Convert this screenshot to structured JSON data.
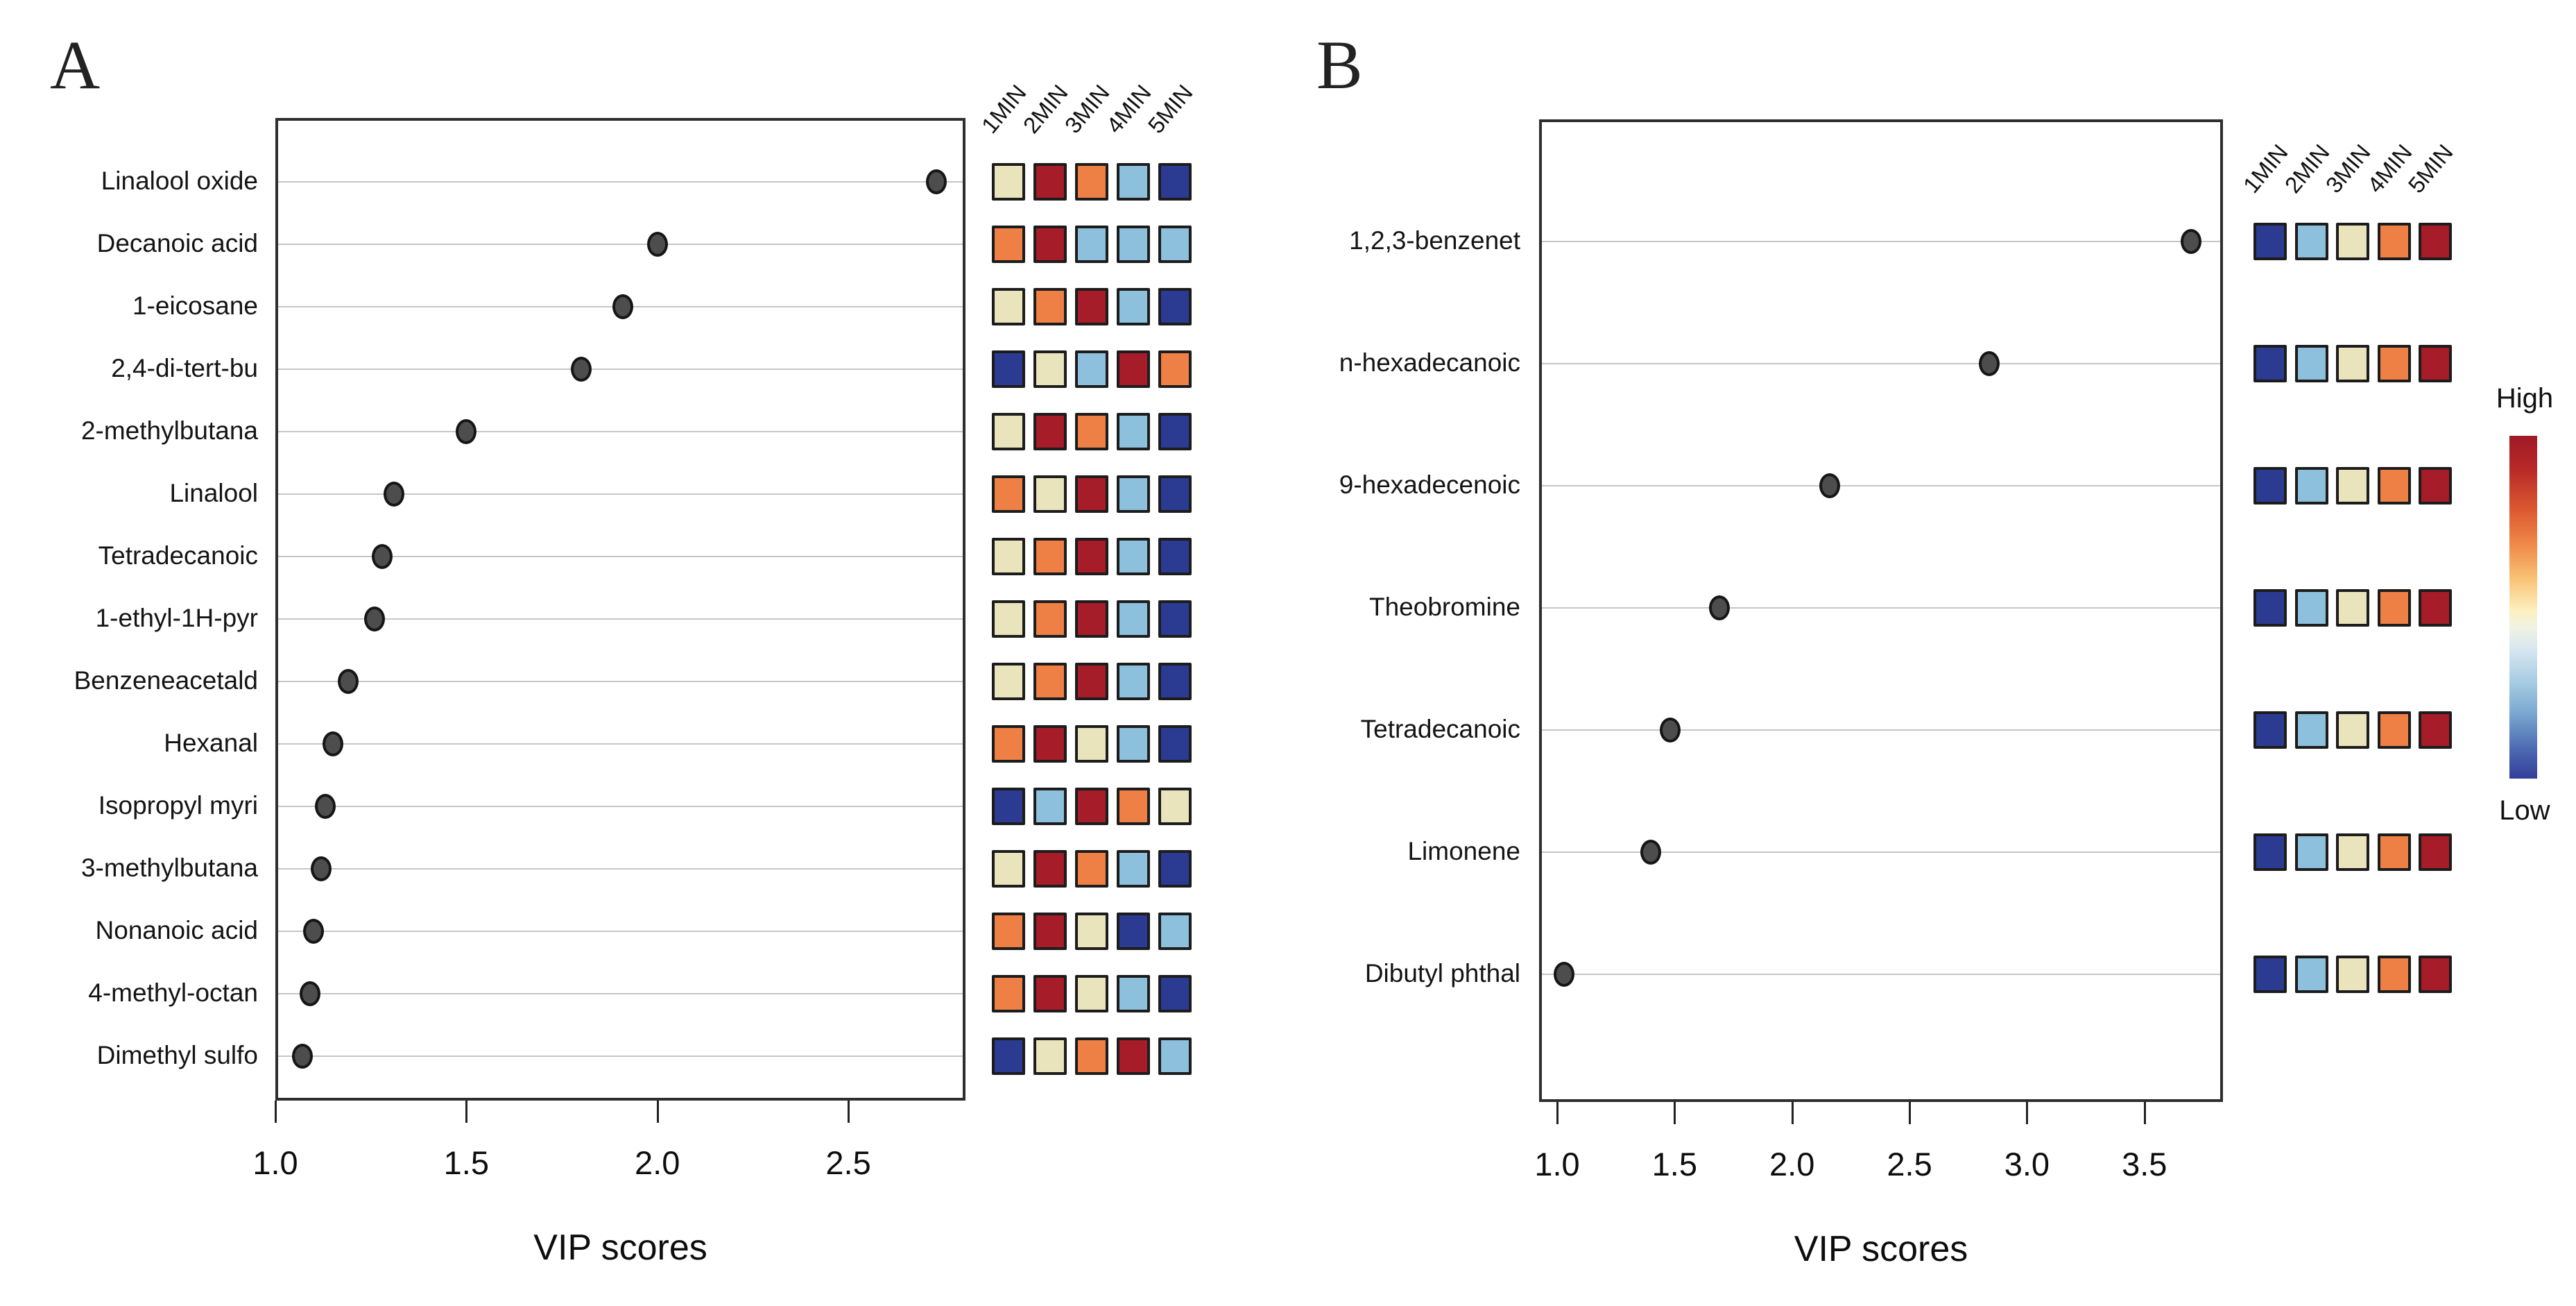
{
  "legend": {
    "high_label": "High",
    "low_label": "Low"
  },
  "palette": {
    "r": "#a61c28",
    "o": "#ee8045",
    "c": "#e9e4bb",
    "lb": "#8cc0dc",
    "db": "#2c3b92"
  },
  "dot_style": {
    "fill": "#4d4d4d",
    "stroke": "#161616"
  },
  "chart_data": [
    {
      "type": "scatter",
      "title": "A",
      "xlabel": "VIP scores",
      "ylabel": "",
      "xlim": [
        1.0,
        2.81
      ],
      "x_ticks": [
        1.0,
        1.5,
        2.0,
        2.5
      ],
      "x_tick_labels": [
        "1.0",
        "1.5",
        "2.0",
        "2.5"
      ],
      "grid": "horizontal",
      "heat_columns": [
        "1MIN",
        "2MIN",
        "3MIN",
        "4MIN",
        "5MIN"
      ],
      "heat_scale": [
        "Low",
        "High"
      ],
      "categories": [
        "Linalool oxide",
        "Decanoic acid",
        "1-eicosane",
        "2,4-di-tert-bu",
        "2-methylbutana",
        "Linalool",
        "Tetradecanoic",
        "1-ethyl-1H-pyr",
        "Benzeneacetald",
        "Hexanal",
        "Isopropyl myri",
        "3-methylbutana",
        "Nonanoic acid",
        "4-methyl-octan",
        "Dimethyl sulfo"
      ],
      "values": [
        2.73,
        2.0,
        1.91,
        1.8,
        1.5,
        1.31,
        1.28,
        1.26,
        1.19,
        1.15,
        1.13,
        1.12,
        1.1,
        1.09,
        1.07
      ],
      "heat_cells": [
        [
          "c",
          "r",
          "o",
          "lb",
          "db"
        ],
        [
          "o",
          "r",
          "lb",
          "lb",
          "lb"
        ],
        [
          "c",
          "o",
          "r",
          "lb",
          "db"
        ],
        [
          "db",
          "c",
          "lb",
          "r",
          "o"
        ],
        [
          "c",
          "r",
          "o",
          "lb",
          "db"
        ],
        [
          "o",
          "c",
          "r",
          "lb",
          "db"
        ],
        [
          "c",
          "o",
          "r",
          "lb",
          "db"
        ],
        [
          "c",
          "o",
          "r",
          "lb",
          "db"
        ],
        [
          "c",
          "o",
          "r",
          "lb",
          "db"
        ],
        [
          "o",
          "r",
          "c",
          "lb",
          "db"
        ],
        [
          "db",
          "lb",
          "r",
          "o",
          "c"
        ],
        [
          "c",
          "r",
          "o",
          "lb",
          "db"
        ],
        [
          "o",
          "r",
          "c",
          "db",
          "lb"
        ],
        [
          "o",
          "r",
          "c",
          "lb",
          "db"
        ],
        [
          "db",
          "c",
          "o",
          "r",
          "lb"
        ]
      ]
    },
    {
      "type": "scatter",
      "title": "B",
      "xlabel": "VIP scores",
      "ylabel": "",
      "xlim": [
        0.92,
        3.84
      ],
      "x_ticks": [
        1.0,
        1.5,
        2.0,
        2.5,
        3.0,
        3.5
      ],
      "x_tick_labels": [
        "1.0",
        "1.5",
        "2.0",
        "2.5",
        "3.0",
        "3.5"
      ],
      "grid": "horizontal",
      "heat_columns": [
        "1MIN",
        "2MIN",
        "3MIN",
        "4MIN",
        "5MIN"
      ],
      "heat_scale": [
        "Low",
        "High"
      ],
      "categories": [
        "1,2,3-benzenet",
        "n-hexadecanoic",
        "9-hexadecenoic",
        "Theobromine",
        "Tetradecanoic",
        "Limonene",
        "Dibutyl phthal"
      ],
      "values": [
        3.7,
        2.84,
        2.16,
        1.69,
        1.48,
        1.4,
        1.03
      ],
      "heat_cells": [
        [
          "db",
          "lb",
          "c",
          "o",
          "r"
        ],
        [
          "db",
          "lb",
          "c",
          "o",
          "r"
        ],
        [
          "db",
          "lb",
          "c",
          "o",
          "r"
        ],
        [
          "db",
          "lb",
          "c",
          "o",
          "r"
        ],
        [
          "db",
          "lb",
          "c",
          "o",
          "r"
        ],
        [
          "db",
          "lb",
          "c",
          "o",
          "r"
        ],
        [
          "db",
          "lb",
          "c",
          "o",
          "r"
        ]
      ]
    }
  ]
}
